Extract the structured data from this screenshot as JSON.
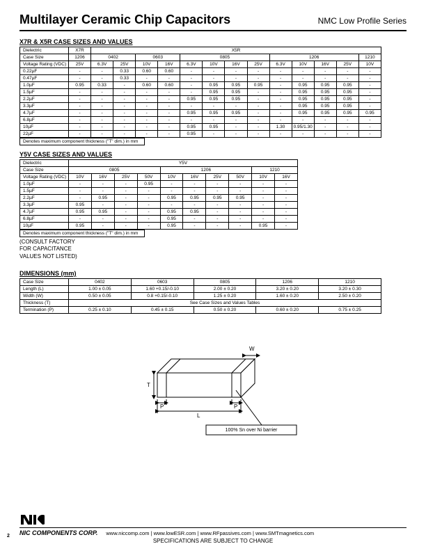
{
  "header": {
    "title": "Multilayer Ceramic Chip Capacitors",
    "series": "NMC Low Profile Series"
  },
  "section1": {
    "heading": "X7R & X5R CASE SIZES AND VALUES",
    "dielectric_label": "Dielectric",
    "x7r": "X7R",
    "x5r": "X5R",
    "case_size_label": "Case Size",
    "sizes": {
      "a": "1206",
      "b": "0402",
      "c": "0603",
      "d": "0805",
      "e": "1206",
      "f": "1210"
    },
    "vr_label": "Voltage Rating (VDC)",
    "volts": [
      "25V",
      "6.3V",
      "25V",
      "10V",
      "16V",
      "6.3V",
      "10V",
      "16V",
      "25V",
      "6.3V",
      "10V",
      "16V",
      "25V",
      "10V"
    ],
    "rows": [
      {
        "cap": "0.22µF",
        "cells": [
          "-",
          "-",
          "0.33",
          "0.60",
          "0.60",
          "-",
          "-",
          "-",
          "-",
          "-",
          "-",
          "-",
          "-",
          "-"
        ]
      },
      {
        "cap": "0.47µF",
        "cells": [
          "-",
          "-",
          "0.33",
          "-",
          "-",
          "-",
          "-",
          "-",
          "-",
          "-",
          "-",
          "-",
          "-",
          "-"
        ]
      },
      {
        "cap": "1.0µF",
        "cells": [
          "0.95",
          "0.33",
          "-",
          "0.60",
          "0.60",
          "-",
          "0.95",
          "0.95",
          "0.95",
          "-",
          "0.95",
          "0.95",
          "0.95",
          "-"
        ]
      },
      {
        "cap": "1.5µF",
        "cells": [
          "-",
          "-",
          "-",
          "-",
          "-",
          "-",
          "0.95",
          "0.95",
          "-",
          "-",
          "0.95",
          "0.95",
          "0.95",
          "-"
        ]
      },
      {
        "cap": "2.2µF",
        "cells": [
          "-",
          "-",
          "-",
          "-",
          "-",
          "0.95",
          "0.95",
          "0.95",
          "-",
          "-",
          "0.95",
          "0.95",
          "0.95",
          "-"
        ]
      },
      {
        "cap": "3.3µF",
        "cells": [
          "-",
          "-",
          "-",
          "-",
          "-",
          "-",
          "-",
          "-",
          "-",
          "-",
          "0.95",
          "0.95",
          "0.95",
          "-"
        ]
      },
      {
        "cap": "4.7µF",
        "cells": [
          "-",
          "-",
          "-",
          "-",
          "-",
          "0.95",
          "0.95",
          "0.95",
          "-",
          "-",
          "0.95",
          "0.95",
          "0.95",
          "0.95"
        ]
      },
      {
        "cap": "6.8µF",
        "cells": [
          "-",
          "-",
          "-",
          "-",
          "-",
          "-",
          "-",
          "-",
          "-",
          "-",
          "-",
          "-",
          "-",
          "-"
        ]
      },
      {
        "cap": "10µF",
        "cells": [
          "-",
          "-",
          "-",
          "-",
          "-",
          "0.95",
          "0.95",
          "-",
          "-",
          "1.30",
          "0.95/1.30",
          "-",
          "-",
          "-"
        ]
      },
      {
        "cap": "22µF",
        "cells": [
          "-",
          "-",
          "-",
          "-",
          "-",
          "0.95",
          "-",
          "-",
          "-",
          "-",
          "-",
          "-",
          "-",
          "-"
        ]
      }
    ],
    "note": "Denotes maximum component thickness (\"T\" dim.) in mm"
  },
  "section2": {
    "heading": "Y5V CASE SIZES AND VALUES",
    "dielectric_label": "Dielectric",
    "y5v": "Y5V",
    "case_size_label": "Case Size",
    "sizes": {
      "a": "0805",
      "b": "1206",
      "c": "1210"
    },
    "vr_label": "Voltage Rating (VDC)",
    "volts": [
      "10V",
      "16V",
      "25V",
      "50V",
      "10V",
      "16V",
      "25V",
      "50V",
      "10V",
      "16V"
    ],
    "rows": [
      {
        "cap": "1.0µF",
        "cells": [
          "-",
          "-",
          "-",
          "0.95",
          "-",
          "-",
          "-",
          "-",
          "-",
          "-"
        ]
      },
      {
        "cap": "1.5µF",
        "cells": [
          "-",
          "-",
          "-",
          "-",
          "-",
          "-",
          "-",
          "-",
          "-",
          "-"
        ]
      },
      {
        "cap": "2.2µF",
        "cells": [
          "-",
          "0.95",
          "-",
          "-",
          "0.95",
          "0.95",
          "0.95",
          "0.95",
          "-",
          "-"
        ]
      },
      {
        "cap": "3.3µF",
        "cells": [
          "0.95",
          "-",
          "-",
          "-",
          "-",
          "-",
          "-",
          "-",
          "-",
          "-"
        ]
      },
      {
        "cap": "4.7µF",
        "cells": [
          "0.95",
          "0.95",
          "-",
          "-",
          "0.95",
          "0.95",
          "-",
          "-",
          "-",
          "-"
        ]
      },
      {
        "cap": "6.8µF",
        "cells": [
          "-",
          "-",
          "-",
          "-",
          "0.95",
          "-",
          "-",
          "-",
          "-",
          "-"
        ]
      },
      {
        "cap": "10µF",
        "cells": [
          "0.95",
          "-",
          "-",
          "-",
          "0.95",
          "-",
          "-",
          "-",
          "0.95",
          "-"
        ]
      }
    ],
    "note": "Denotes maximum component thickness (\"T\" dim.) in mm",
    "consult": [
      "(CONSULT FACTORY",
      "FOR CAPACITANCE",
      "VALUES NOT LISTED)"
    ]
  },
  "dims": {
    "heading": "DIMENSIONS (mm)",
    "case_size_label": "Case Size",
    "sizes": [
      "0402",
      "0603",
      "0805",
      "1206",
      "1210"
    ],
    "rows": [
      {
        "label": "Length (L)",
        "vals": [
          "1.00 ± 0.05",
          "1.60 +0.15/-0.10",
          "2.00 ± 0.20",
          "3.20 ± 0.20",
          "3.20 ± 0.30"
        ]
      },
      {
        "label": "Width (W)",
        "vals": [
          "0.50 ± 0.05",
          "0.8 +0.15/-0.10",
          "1.25 ± 0.20",
          "1.60 ± 0.20",
          "2.50 ± 0.20"
        ]
      },
      {
        "label": "Thickness (T)",
        "span": "See Case Sizes and Values Tables"
      },
      {
        "label": "Termination (P)",
        "vals": [
          "0.25 ± 0.10",
          "0.45 ± 0.15",
          "0.50 ± 0.20",
          "0.60 ± 0.20",
          "0.75 ± 0.25"
        ]
      }
    ]
  },
  "diagram": {
    "w": "W",
    "t": "T",
    "p": "P",
    "l": "L",
    "callout": "100% Sn over Ni barrier"
  },
  "footer": {
    "corp": "NIC COMPONENTS CORP.",
    "links": [
      "www.niccomp.com",
      "www.lowESR.com",
      "www.RFpassives.com",
      "www.SMTmagnetics.com"
    ],
    "sep": "  |  ",
    "sub": "SPECIFICATIONS ARE SUBJECT TO CHANGE",
    "page": "2"
  }
}
